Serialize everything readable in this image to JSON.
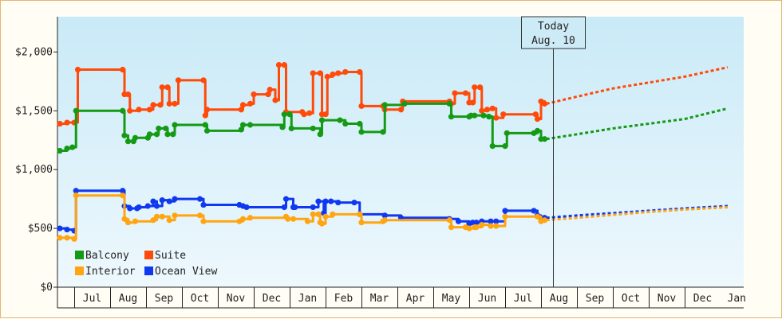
{
  "chart_data": {
    "type": "line",
    "title": "",
    "xlabel": "",
    "ylabel": "",
    "ylim": [
      0,
      2300
    ],
    "yticks": [
      {
        "value": 0,
        "label": "$0"
      },
      {
        "value": 500,
        "label": "$500"
      },
      {
        "value": 1000,
        "label": "$1,000"
      },
      {
        "value": 1500,
        "label": "$1,500"
      },
      {
        "value": 2000,
        "label": "$2,000"
      }
    ],
    "x_range_month_index": [
      0,
      13.8
    ],
    "month_labels": [
      {
        "label": "Jul",
        "m": 0.4
      },
      {
        "label": "Aug",
        "m": 1.4
      },
      {
        "label": "Sep",
        "m": 2.4
      },
      {
        "label": "Oct",
        "m": 3.4
      },
      {
        "label": "Nov",
        "m": 4.4
      },
      {
        "label": "Dec",
        "m": 5.4
      },
      {
        "label": "Jan",
        "m": 6.4
      },
      {
        "label": "Feb",
        "m": 7.4
      },
      {
        "label": "Mar",
        "m": 8.4
      },
      {
        "label": "Apr",
        "m": 9.4
      },
      {
        "label": "May",
        "m": 10.4
      },
      {
        "label": "Jun",
        "m": 11.4
      },
      {
        "label": "Jul",
        "m": 12.4
      },
      {
        "label": "Aug",
        "m": 13.4
      },
      {
        "label": "Sep",
        "m": 14.4
      },
      {
        "label": "Oct",
        "m": 15.4
      },
      {
        "label": "Nov",
        "m": 16.4
      },
      {
        "label": "Dec",
        "m": 17.4
      },
      {
        "label": "Jan",
        "m": 18.35
      }
    ],
    "month_boundaries": [
      0.4,
      1.4,
      2.4,
      3.4,
      4.4,
      5.4,
      6.4,
      7.4,
      8.4,
      9.4,
      10.4,
      11.4,
      12.4,
      13.4,
      14.4,
      15.4,
      16.4,
      17.4
    ],
    "today": {
      "line1": "Today",
      "line2": "Aug. 10",
      "m": 13.74
    },
    "legend": {
      "placement": "bottom-left"
    },
    "grid": false,
    "series": [
      {
        "name": "Suite",
        "color": "#ff4a0a",
        "points": [
          [
            0,
            1390
          ],
          [
            0.2,
            1400
          ],
          [
            0.4,
            1400
          ],
          [
            0.5,
            1850
          ],
          [
            1.75,
            1850
          ],
          [
            1.8,
            1640
          ],
          [
            1.9,
            1640
          ],
          [
            1.95,
            1500
          ],
          [
            2.2,
            1510
          ],
          [
            2.5,
            1510
          ],
          [
            2.6,
            1550
          ],
          [
            2.8,
            1550
          ],
          [
            2.85,
            1700
          ],
          [
            3.0,
            1700
          ],
          [
            3.05,
            1560
          ],
          [
            3.2,
            1560
          ],
          [
            3.3,
            1760
          ],
          [
            4.0,
            1760
          ],
          [
            4.05,
            1460
          ],
          [
            4.1,
            1510
          ],
          [
            5.05,
            1510
          ],
          [
            5.1,
            1550
          ],
          [
            5.3,
            1560
          ],
          [
            5.4,
            1640
          ],
          [
            5.8,
            1640
          ],
          [
            5.85,
            1680
          ],
          [
            6.0,
            1590
          ],
          [
            6.1,
            1890
          ],
          [
            6.25,
            1890
          ],
          [
            6.3,
            1490
          ],
          [
            6.75,
            1490
          ],
          [
            6.8,
            1470
          ],
          [
            6.95,
            1480
          ],
          [
            7.05,
            1820
          ],
          [
            7.25,
            1820
          ],
          [
            7.3,
            1470
          ],
          [
            7.4,
            1470
          ],
          [
            7.45,
            1790
          ],
          [
            7.6,
            1810
          ],
          [
            7.75,
            1820
          ],
          [
            7.95,
            1830
          ],
          [
            8.35,
            1830
          ],
          [
            8.4,
            1540
          ],
          [
            9.0,
            1540
          ],
          [
            9.05,
            1510
          ],
          [
            9.5,
            1510
          ],
          [
            9.55,
            1580
          ],
          [
            10.85,
            1580
          ],
          [
            10.9,
            1560
          ],
          [
            11.0,
            1650
          ],
          [
            11.3,
            1650
          ],
          [
            11.4,
            1570
          ],
          [
            11.5,
            1570
          ],
          [
            11.55,
            1700
          ],
          [
            11.7,
            1700
          ],
          [
            11.75,
            1500
          ],
          [
            11.9,
            1510
          ],
          [
            12.05,
            1520
          ],
          [
            12.15,
            1440
          ],
          [
            12.35,
            1470
          ],
          [
            13.25,
            1470
          ],
          [
            13.3,
            1430
          ],
          [
            13.4,
            1580
          ],
          [
            13.5,
            1560
          ]
        ],
        "forecast": [
          [
            13.55,
            1560
          ],
          [
            14.4,
            1620
          ],
          [
            15.4,
            1690
          ],
          [
            16.4,
            1740
          ],
          [
            17.4,
            1790
          ],
          [
            18.6,
            1870
          ]
        ]
      },
      {
        "name": "Balcony",
        "color": "#159a15",
        "points": [
          [
            0,
            1160
          ],
          [
            0.2,
            1180
          ],
          [
            0.35,
            1190
          ],
          [
            0.45,
            1500
          ],
          [
            1.75,
            1500
          ],
          [
            1.8,
            1290
          ],
          [
            1.9,
            1240
          ],
          [
            2.05,
            1240
          ],
          [
            2.1,
            1270
          ],
          [
            2.45,
            1270
          ],
          [
            2.5,
            1300
          ],
          [
            2.7,
            1300
          ],
          [
            2.75,
            1350
          ],
          [
            2.95,
            1350
          ],
          [
            3.0,
            1300
          ],
          [
            3.15,
            1300
          ],
          [
            3.2,
            1380
          ],
          [
            4.05,
            1380
          ],
          [
            4.1,
            1330
          ],
          [
            5.05,
            1340
          ],
          [
            5.1,
            1380
          ],
          [
            5.3,
            1380
          ],
          [
            6.2,
            1360
          ],
          [
            6.25,
            1470
          ],
          [
            6.4,
            1470
          ],
          [
            6.45,
            1350
          ],
          [
            7.05,
            1350
          ],
          [
            7.25,
            1300
          ],
          [
            7.3,
            1420
          ],
          [
            7.8,
            1420
          ],
          [
            7.95,
            1390
          ],
          [
            8.35,
            1390
          ],
          [
            8.4,
            1320
          ],
          [
            9.0,
            1320
          ],
          [
            9.05,
            1550
          ],
          [
            9.6,
            1560
          ],
          [
            10.85,
            1560
          ],
          [
            10.9,
            1450
          ],
          [
            11.4,
            1450
          ],
          [
            11.45,
            1460
          ],
          [
            11.55,
            1460
          ],
          [
            11.8,
            1460
          ],
          [
            11.95,
            1450
          ],
          [
            12.05,
            1200
          ],
          [
            12.4,
            1200
          ],
          [
            12.45,
            1310
          ],
          [
            13.2,
            1310
          ],
          [
            13.3,
            1330
          ],
          [
            13.4,
            1260
          ],
          [
            13.5,
            1260
          ]
        ],
        "forecast": [
          [
            13.55,
            1260
          ],
          [
            14.4,
            1300
          ],
          [
            15.4,
            1350
          ],
          [
            16.4,
            1390
          ],
          [
            17.4,
            1430
          ],
          [
            18.6,
            1520
          ]
        ]
      },
      {
        "name": "Ocean View",
        "color": "#1038f0",
        "points": [
          [
            0,
            500
          ],
          [
            0.2,
            490
          ],
          [
            0.4,
            480
          ],
          [
            0.45,
            820
          ],
          [
            1.75,
            820
          ],
          [
            1.8,
            690
          ],
          [
            1.95,
            670
          ],
          [
            2.15,
            670
          ],
          [
            2.2,
            680
          ],
          [
            2.45,
            690
          ],
          [
            2.6,
            730
          ],
          [
            2.7,
            690
          ],
          [
            2.85,
            740
          ],
          [
            3.05,
            730
          ],
          [
            3.2,
            750
          ],
          [
            3.9,
            750
          ],
          [
            4.0,
            700
          ],
          [
            5.0,
            700
          ],
          [
            5.1,
            690
          ],
          [
            5.2,
            680
          ],
          [
            6.25,
            680
          ],
          [
            6.3,
            750
          ],
          [
            6.5,
            680
          ],
          [
            6.55,
            680
          ],
          [
            7.05,
            680
          ],
          [
            7.2,
            730
          ],
          [
            7.35,
            630
          ],
          [
            7.4,
            730
          ],
          [
            7.55,
            730
          ],
          [
            7.75,
            720
          ],
          [
            8.2,
            720
          ],
          [
            8.35,
            620
          ],
          [
            9.05,
            610
          ],
          [
            9.5,
            590
          ],
          [
            10.85,
            580
          ],
          [
            11.1,
            560
          ],
          [
            11.4,
            540
          ],
          [
            11.5,
            550
          ],
          [
            11.6,
            550
          ],
          [
            11.75,
            560
          ],
          [
            12.0,
            560
          ],
          [
            12.15,
            560
          ],
          [
            12.4,
            650
          ],
          [
            13.2,
            650
          ],
          [
            13.3,
            610
          ],
          [
            13.4,
            590
          ],
          [
            13.5,
            590
          ]
        ],
        "forecast": [
          [
            13.55,
            590
          ],
          [
            14.4,
            610
          ],
          [
            15.4,
            630
          ],
          [
            16.4,
            650
          ],
          [
            17.4,
            670
          ],
          [
            18.6,
            690
          ]
        ]
      },
      {
        "name": "Interior",
        "color": "#ffa512",
        "points": [
          [
            0,
            420
          ],
          [
            0.2,
            420
          ],
          [
            0.4,
            410
          ],
          [
            0.45,
            780
          ],
          [
            1.75,
            780
          ],
          [
            1.8,
            580
          ],
          [
            1.9,
            550
          ],
          [
            2.1,
            560
          ],
          [
            2.6,
            570
          ],
          [
            2.7,
            600
          ],
          [
            2.85,
            600
          ],
          [
            3.05,
            570
          ],
          [
            3.2,
            610
          ],
          [
            3.9,
            610
          ],
          [
            4.0,
            560
          ],
          [
            5.0,
            560
          ],
          [
            5.1,
            580
          ],
          [
            5.3,
            590
          ],
          [
            6.3,
            600
          ],
          [
            6.35,
            580
          ],
          [
            6.5,
            580
          ],
          [
            6.9,
            560
          ],
          [
            7.05,
            620
          ],
          [
            7.2,
            620
          ],
          [
            7.25,
            550
          ],
          [
            7.3,
            540
          ],
          [
            7.4,
            600
          ],
          [
            7.6,
            620
          ],
          [
            8.35,
            620
          ],
          [
            8.4,
            550
          ],
          [
            9.0,
            560
          ],
          [
            9.05,
            570
          ],
          [
            10.85,
            570
          ],
          [
            10.9,
            510
          ],
          [
            11.3,
            510
          ],
          [
            11.4,
            500
          ],
          [
            11.55,
            510
          ],
          [
            11.6,
            510
          ],
          [
            11.75,
            530
          ],
          [
            12.0,
            520
          ],
          [
            12.15,
            520
          ],
          [
            12.4,
            600
          ],
          [
            13.3,
            600
          ],
          [
            13.4,
            560
          ],
          [
            13.5,
            570
          ]
        ],
        "forecast": [
          [
            13.55,
            570
          ],
          [
            14.4,
            590
          ],
          [
            15.4,
            615
          ],
          [
            16.4,
            640
          ],
          [
            17.4,
            660
          ],
          [
            18.6,
            680
          ]
        ]
      }
    ]
  }
}
